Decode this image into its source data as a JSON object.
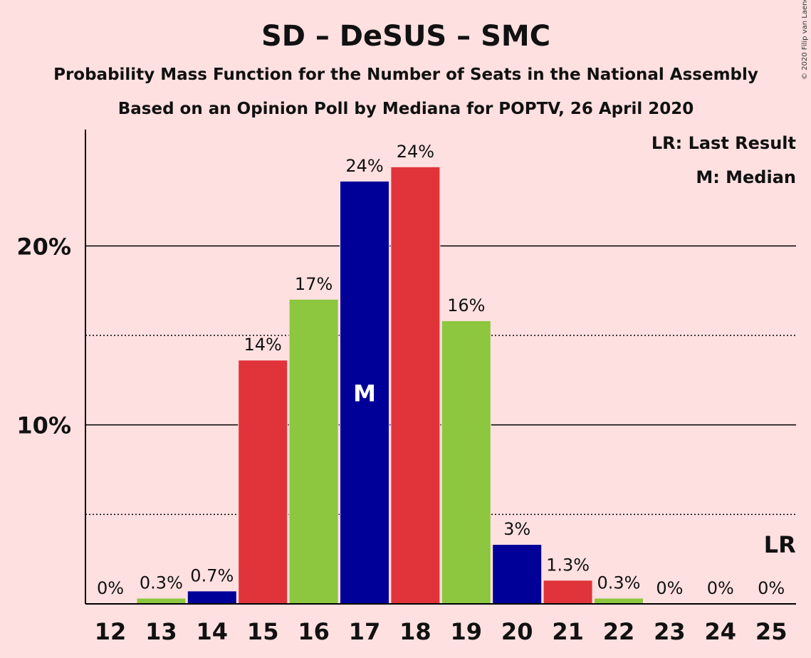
{
  "chart_data": {
    "type": "bar",
    "title": "SD – DeSUS – SMC",
    "subtitle1": "Probability Mass Function for the Number of Seats in the National Assembly",
    "subtitle2": "Based on an Opinion Poll by Mediana for POPTV, 26 April 2020",
    "copyright": "© 2020 Filip van Laenen",
    "legend": {
      "lr": "LR: Last Result",
      "m": "M: Median",
      "position": "top-right"
    },
    "categories": [
      "12",
      "13",
      "14",
      "15",
      "16",
      "17",
      "18",
      "19",
      "20",
      "21",
      "22",
      "23",
      "24",
      "25"
    ],
    "values": [
      0,
      0.3,
      0.7,
      13.6,
      17.0,
      23.6,
      24.4,
      15.8,
      3.3,
      1.3,
      0.3,
      0,
      0,
      0
    ],
    "labels": [
      "0%",
      "0.3%",
      "0.7%",
      "14%",
      "17%",
      "24%",
      "24%",
      "16%",
      "3%",
      "1.3%",
      "0.3%",
      "0%",
      "0%",
      "0%"
    ],
    "bar_colors": [
      "#E0343A",
      "#8DC63F",
      "#000099",
      "#E0343A",
      "#8DC63F",
      "#000099",
      "#E0343A",
      "#8DC63F",
      "#000099",
      "#E0343A",
      "#8DC63F",
      "#000099",
      "#E0343A",
      "#8DC63F"
    ],
    "median_category": "17",
    "median_label": "M",
    "last_result_category": "25",
    "last_result_label": "LR",
    "yticks": [
      {
        "value": 10,
        "label": "10%"
      },
      {
        "value": 20,
        "label": "20%"
      }
    ],
    "minor_gridlines": [
      5,
      15
    ],
    "ylim": [
      0,
      26.5
    ],
    "grid": true
  }
}
